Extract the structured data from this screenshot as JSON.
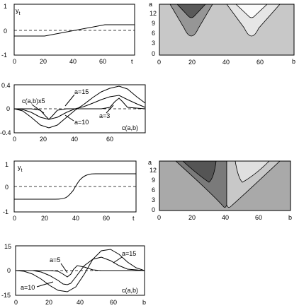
{
  "chart_data": [
    {
      "type": "line",
      "ylabel": "y",
      "ylabel_sub": "t",
      "xlabel": "t",
      "xlim": [
        0,
        75
      ],
      "ylim": [
        -1,
        1
      ],
      "xticks": [
        "0",
        "20",
        "40",
        "60"
      ],
      "yticks": [
        "1",
        "0",
        "-1"
      ],
      "series": [
        {
          "x": [
            0,
            20,
            60,
            75
          ],
          "y": [
            -0.2,
            -0.2,
            0.2,
            0.2
          ]
        }
      ]
    },
    {
      "type": "heatmap",
      "ylabel": "a",
      "xlabel": "b",
      "xlim": [
        0,
        80
      ],
      "ylim": [
        0,
        15
      ],
      "xticks": [
        "0",
        "20",
        "40",
        "60"
      ],
      "yticks": [
        "12",
        "9",
        "6",
        "3",
        "0"
      ],
      "colors": [
        "#c8c8c8",
        "#969696",
        "#5a5a5a",
        "#e6e6e6",
        "#fafafa"
      ]
    },
    {
      "type": "line",
      "ylabel": "c(a,b)",
      "xlim": [
        0,
        75
      ],
      "ylim": [
        -0.4,
        0.4
      ],
      "xticks": [
        "0",
        "20",
        "40",
        "60"
      ],
      "yticks": [
        "0.4",
        "0",
        "-0.4"
      ],
      "annotations": [
        "c(a,b)x5",
        "a=15",
        "a=10",
        "a=3"
      ],
      "series": [
        {
          "x": [
            0,
            5,
            10,
            15,
            20,
            25,
            30,
            35,
            40,
            45,
            50,
            55,
            60,
            65,
            70,
            75
          ],
          "y": [
            0,
            -0.04,
            -0.14,
            -0.27,
            -0.32,
            -0.27,
            -0.14,
            -0.02,
            0.08,
            0.2,
            0.3,
            0.36,
            0.38,
            0.33,
            0.2,
            0.1
          ]
        },
        {
          "x": [
            0,
            5,
            10,
            15,
            20,
            25,
            30,
            35,
            40,
            45,
            50,
            55,
            60,
            65,
            70,
            75
          ],
          "y": [
            0,
            -0.01,
            -0.06,
            -0.14,
            -0.18,
            -0.14,
            -0.06,
            0,
            0.04,
            0.1,
            0.16,
            0.2,
            0.22,
            0.16,
            0.08,
            0.02
          ]
        },
        {
          "x": [
            0,
            10,
            15,
            18,
            20,
            22,
            25,
            30,
            50,
            55,
            58,
            60,
            62,
            65,
            75
          ],
          "y": [
            0,
            0,
            -0.02,
            -0.12,
            -0.18,
            -0.12,
            -0.02,
            0,
            0,
            0.02,
            0.12,
            0.18,
            0.12,
            0.02,
            0
          ]
        }
      ]
    },
    {
      "type": "line",
      "ylabel": "y",
      "ylabel_sub": "t",
      "xlabel": "t",
      "xlim": [
        0,
        75
      ],
      "ylim": [
        -1,
        1
      ],
      "xticks": [
        "0",
        "20",
        "40",
        "60"
      ],
      "yticks": [
        "1",
        "0",
        "-1"
      ],
      "series": [
        {
          "x": [
            0,
            25,
            30,
            35,
            40,
            45,
            50,
            55,
            75
          ],
          "y": [
            -0.5,
            -0.5,
            -0.45,
            -0.3,
            0,
            0.3,
            0.45,
            0.5,
            0.5
          ]
        }
      ]
    },
    {
      "type": "heatmap",
      "ylabel": "a",
      "xlabel": "b",
      "xlim": [
        0,
        80
      ],
      "ylim": [
        0,
        15
      ],
      "xticks": [
        "0",
        "20",
        "40",
        "60"
      ],
      "yticks": [
        "12",
        "9",
        "6",
        "3",
        "0"
      ],
      "colors": [
        "#a9a9a9",
        "#7a7a7a",
        "#555555",
        "#c8c8c8",
        "#e0e0e0"
      ]
    },
    {
      "type": "line",
      "ylabel": "c(a,b)",
      "xlim": [
        0,
        75
      ],
      "ylim": [
        -15,
        15
      ],
      "xticks": [
        "0",
        "20",
        "40",
        "60"
      ],
      "yticks": [
        "15",
        "0",
        "-15"
      ],
      "annotations": [
        "a=15",
        "a=5",
        "a=10"
      ],
      "series": [
        {
          "x": [
            0,
            5,
            10,
            15,
            20,
            25,
            30,
            35,
            40,
            45,
            50,
            55,
            60,
            65,
            70,
            75
          ],
          "y": [
            0,
            -0.5,
            -2,
            -5,
            -9,
            -12,
            -13,
            -10,
            -2,
            7,
            12,
            13,
            10,
            5,
            1.5,
            0
          ]
        },
        {
          "x": [
            0,
            10,
            15,
            20,
            25,
            28,
            30,
            32,
            35,
            40,
            45,
            50,
            55,
            60,
            65,
            75
          ],
          "y": [
            0,
            0,
            -1,
            -3,
            -6,
            -8,
            -8.5,
            -7.5,
            -4,
            3,
            7,
            8,
            6,
            3,
            1,
            0
          ]
        },
        {
          "x": [
            0,
            20,
            25,
            28,
            30,
            32,
            34,
            36,
            40,
            45,
            50,
            75
          ],
          "y": [
            0,
            0,
            -0.5,
            -2,
            -4,
            -2,
            1,
            3,
            2,
            0.5,
            0,
            0
          ]
        }
      ]
    }
  ]
}
